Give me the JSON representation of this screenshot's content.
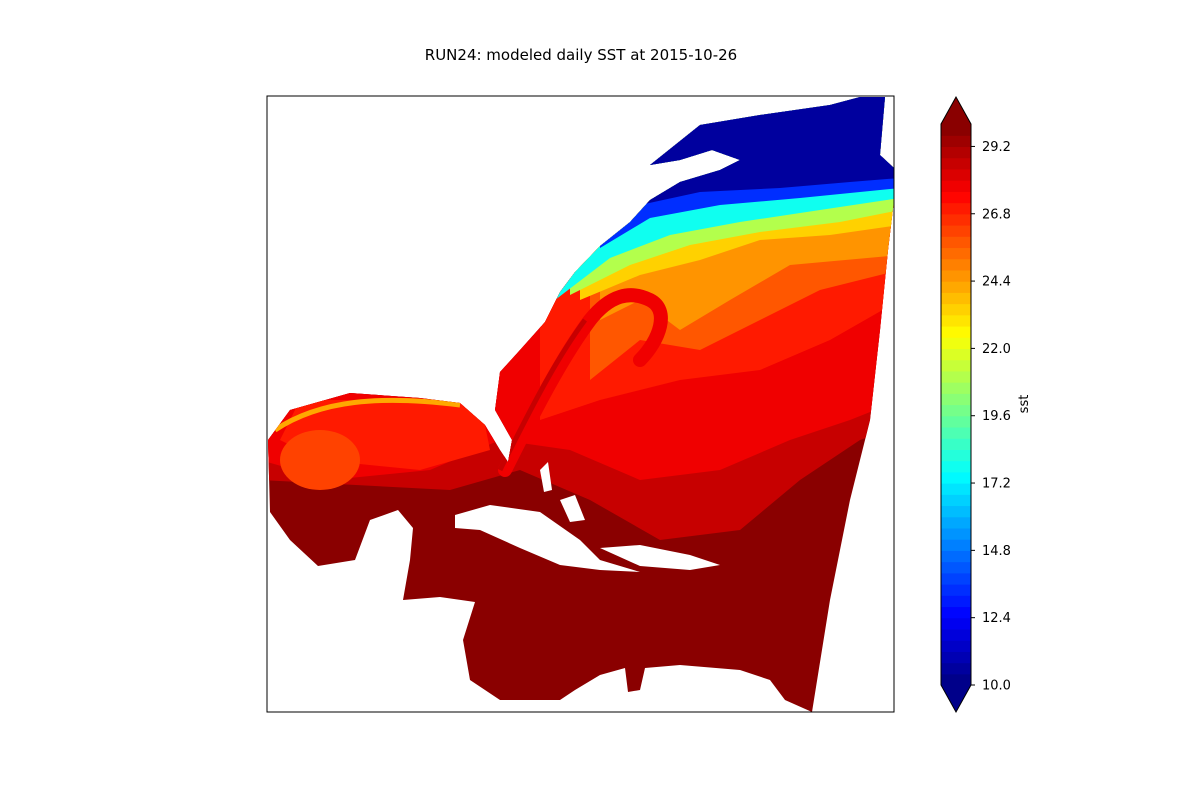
{
  "chart_data": {
    "type": "heatmap",
    "title": "RUN24: modeled daily SST at 2015-10-26",
    "colormap": "jet",
    "colorbar": {
      "label": "sst",
      "range": [
        10.0,
        30.0
      ],
      "level_step": 0.4,
      "extend": "both",
      "ticks": [
        "10.0",
        "12.4",
        "14.8",
        "17.2",
        "19.6",
        "22.0",
        "24.4",
        "26.8",
        "29.2"
      ],
      "placement": "right"
    },
    "axes": {
      "ticks_shown": false,
      "grid": false
    },
    "land_color": "#ffffff"
  }
}
